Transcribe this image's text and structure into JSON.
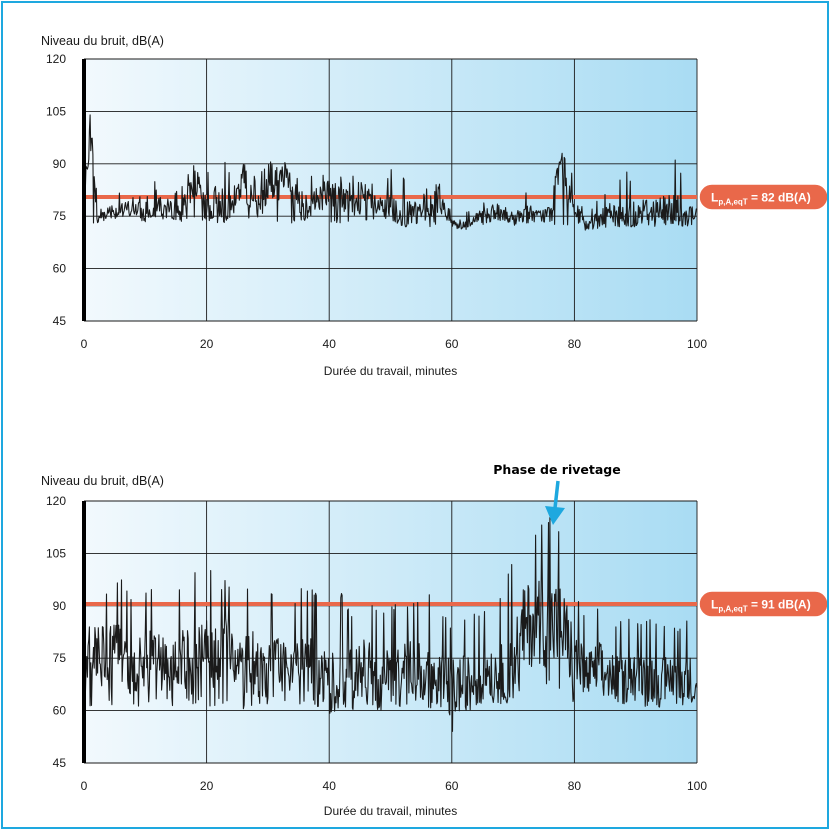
{
  "colors": {
    "frame": "#1ea8df",
    "plot_bg_left": "#f2f9fd",
    "plot_bg_right": "#a9dcf3",
    "level_line": "#e9684a",
    "badge": "#e9684a",
    "signal": "#1a1a1a",
    "arrow": "#1ea8df"
  },
  "chart_data": [
    {
      "type": "line",
      "ylabel": "Niveau du bruit, dB(A)",
      "xlabel": "Durée du travail, minutes",
      "xlim": [
        0,
        100
      ],
      "ylim": [
        45,
        120
      ],
      "x_ticks": [
        "0",
        "20",
        "40",
        "60",
        "80",
        "100"
      ],
      "y_ticks": [
        "120",
        "105",
        "90",
        "75",
        "60",
        "45"
      ],
      "grid": true,
      "reference_line": {
        "value": 80.5
      },
      "badge": {
        "main": "L",
        "sub": "p,A,eqT",
        "rest": " = 82 dB(A)"
      },
      "series": [
        {
          "x": [
            0,
            1,
            2,
            4,
            6,
            8,
            10,
            12,
            14,
            16,
            18,
            20,
            22,
            24,
            26,
            28,
            30,
            32,
            34,
            36,
            38,
            40,
            42,
            44,
            46,
            48,
            50,
            52,
            54,
            56,
            58,
            60,
            62,
            64,
            66,
            68,
            70,
            72,
            74,
            76,
            78,
            80,
            82,
            84,
            86,
            88,
            90,
            92,
            94,
            96,
            98,
            100
          ],
          "y": [
            77,
            104,
            74,
            77,
            76,
            78,
            75,
            79,
            77,
            76,
            86,
            76,
            80,
            77,
            86,
            76,
            83,
            85,
            84,
            78,
            80,
            82,
            80,
            78,
            81,
            77,
            77,
            75,
            76,
            77,
            80,
            73,
            72,
            74,
            76,
            75,
            74,
            76,
            75,
            76,
            91,
            76,
            72,
            74,
            76,
            74,
            76,
            77,
            76,
            77,
            75,
            76
          ],
          "peak_max": [
            82,
            104,
            84,
            82,
            83,
            84,
            81,
            86,
            82,
            84,
            91,
            87,
            93,
            88,
            91,
            86,
            92,
            92,
            89,
            90,
            86,
            90,
            87,
            87,
            87,
            84,
            90,
            86,
            85,
            84,
            86,
            76,
            76,
            78,
            82,
            80,
            77,
            83,
            78,
            82,
            93,
            86,
            76,
            80,
            83,
            90,
            86,
            85,
            91,
            95,
            84,
            79
          ],
          "peak_min": [
            74,
            73,
            73,
            74,
            74,
            74,
            73,
            74,
            73,
            73,
            74,
            73,
            73,
            73,
            73,
            73,
            74,
            73,
            73,
            73,
            73,
            73,
            73,
            73,
            72,
            73,
            73,
            72,
            72,
            72,
            72,
            71,
            71,
            72,
            72,
            72,
            72,
            72,
            72,
            72,
            72,
            71,
            71,
            71,
            72,
            72,
            72,
            72,
            72,
            73,
            72,
            73
          ]
        }
      ]
    },
    {
      "type": "line",
      "title": "Phase de rivetage",
      "ylabel": "Niveau du bruit, dB(A)",
      "xlabel": "Durée du travail, minutes",
      "xlim": [
        0,
        100
      ],
      "ylim": [
        45,
        120
      ],
      "x_ticks": [
        "0",
        "20",
        "40",
        "60",
        "80",
        "100"
      ],
      "y_ticks": [
        "120",
        "105",
        "90",
        "75",
        "60",
        "45"
      ],
      "grid": true,
      "reference_line": {
        "value": 90.5
      },
      "badge": {
        "main": "L",
        "sub": "p,A,eqT",
        "rest": " = 91 dB(A)"
      },
      "series": [
        {
          "x": [
            0,
            1,
            2,
            4,
            6,
            8,
            10,
            12,
            14,
            16,
            18,
            20,
            22,
            24,
            26,
            28,
            30,
            32,
            34,
            36,
            38,
            40,
            42,
            44,
            46,
            48,
            50,
            52,
            54,
            56,
            58,
            60,
            62,
            64,
            66,
            68,
            70,
            72,
            74,
            76,
            78,
            80,
            82,
            84,
            86,
            88,
            90,
            92,
            94,
            96,
            98,
            100
          ],
          "y": [
            70,
            80,
            76,
            75,
            78,
            72,
            76,
            74,
            70,
            74,
            72,
            76,
            78,
            76,
            72,
            74,
            70,
            73,
            70,
            72,
            70,
            68,
            70,
            70,
            72,
            68,
            70,
            72,
            73,
            70,
            68,
            66,
            68,
            68,
            72,
            70,
            74,
            84,
            86,
            85,
            84,
            74,
            70,
            72,
            70,
            68,
            72,
            70,
            68,
            70,
            68,
            70
          ],
          "peak_max": [
            88,
            96,
            95,
            94,
            98,
            92,
            96,
            94,
            92,
            96,
            100,
            102,
            97,
            98,
            96,
            97,
            94,
            95,
            90,
            97,
            94,
            92,
            94,
            87,
            93,
            90,
            91,
            90,
            91,
            96,
            90,
            86,
            88,
            88,
            90,
            94,
            104,
            112,
            113,
            116,
            111,
            95,
            86,
            92,
            88,
            85,
            88,
            86,
            88,
            85,
            86,
            88
          ],
          "peak_min": [
            61,
            60,
            61,
            62,
            60,
            60,
            61,
            62,
            60,
            61,
            61,
            60,
            62,
            61,
            60,
            61,
            62,
            60,
            61,
            60,
            60,
            59,
            60,
            60,
            61,
            60,
            60,
            60,
            62,
            61,
            60,
            53,
            59,
            61,
            62,
            62,
            62,
            66,
            68,
            67,
            64,
            62,
            62,
            63,
            62,
            61,
            62,
            61,
            61,
            62,
            61,
            63
          ]
        }
      ]
    }
  ]
}
